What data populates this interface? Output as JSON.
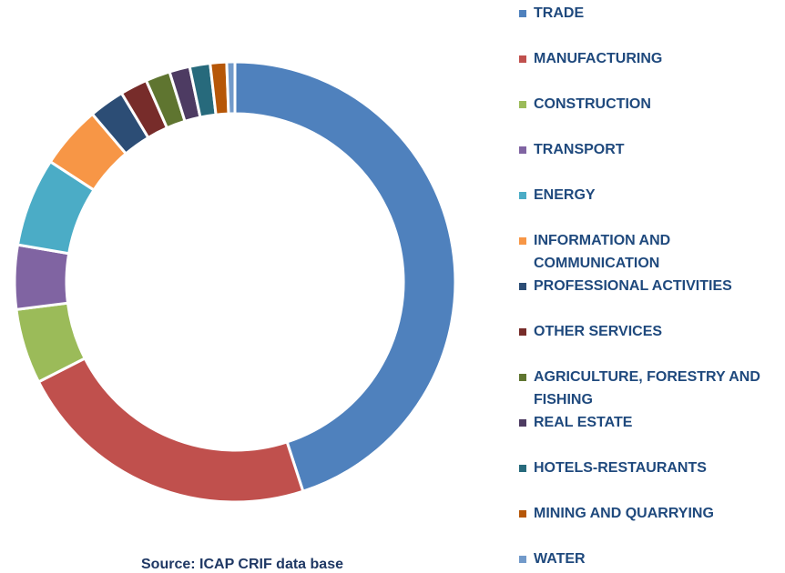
{
  "chart_data": {
    "type": "donut",
    "source": "Source: ICAP CRIF data base",
    "categories": [
      "TRADE",
      "MANUFACTURING",
      "CONSTRUCTION",
      "TRANSPORT",
      "ENERGY",
      "INFORMATION AND COMMUNICATION",
      "PROFESSIONAL ACTIVITIES",
      "OTHER SERVICES",
      "AGRICULTURE, FORESTRY AND FISHING",
      "REAL ESTATE",
      "HOTELS-RESTAURANTS",
      "MINING AND QUARRYING",
      "WATER"
    ],
    "values": [
      45,
      22.5,
      5.5,
      4.7,
      6.5,
      4.6,
      2.6,
      2,
      1.8,
      1.5,
      1.5,
      1.2,
      0.6
    ],
    "colors": [
      "#4f81bd",
      "#c0504d",
      "#9bbb59",
      "#8064a2",
      "#4bacc6",
      "#f79646",
      "#2c4d75",
      "#772c2a",
      "#5f7530",
      "#4d3b62",
      "#276a7c",
      "#b65708",
      "#729aca"
    ],
    "legend": "right"
  }
}
